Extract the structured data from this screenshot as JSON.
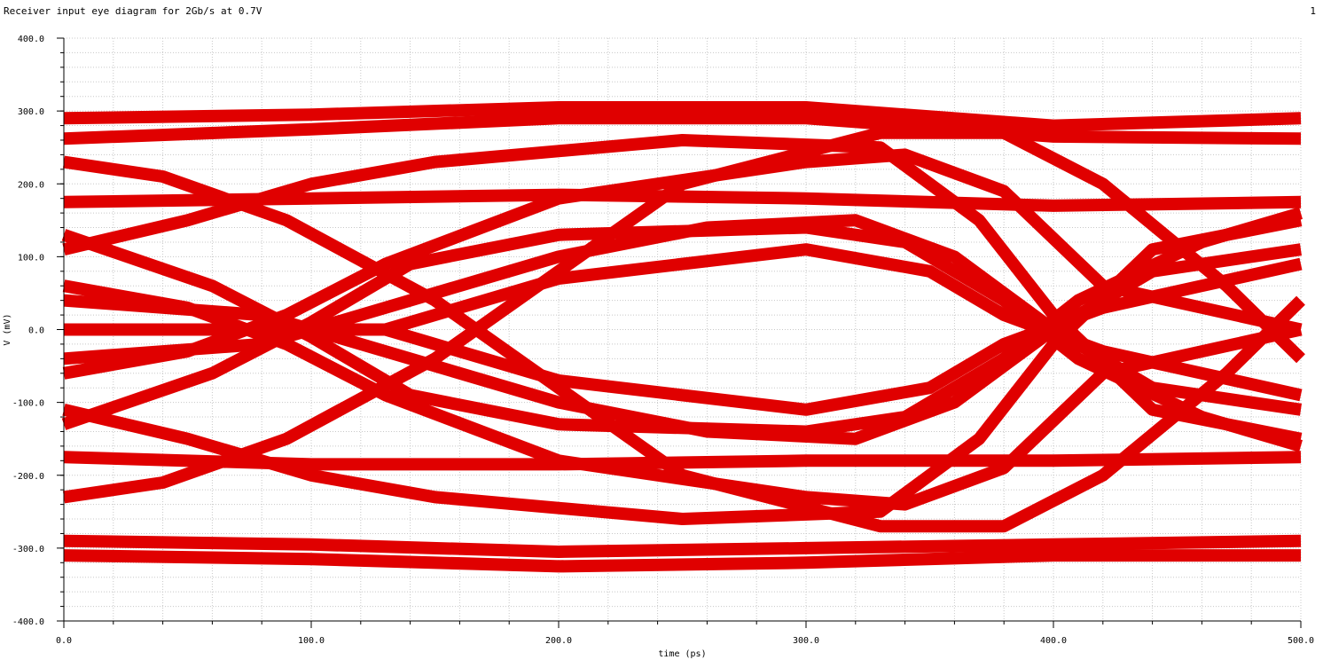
{
  "header": {
    "title": "Receiver input eye diagram for 2Gb/s at 0.7V",
    "page_number": "1"
  },
  "chart_data": {
    "type": "line",
    "title": "Receiver input eye diagram for 2Gb/s at 0.7V",
    "xlabel": "time (ps)",
    "ylabel": "V (mV)",
    "xlim": [
      0,
      500
    ],
    "ylim": [
      -400,
      400
    ],
    "x_ticks": [
      0,
      100,
      200,
      300,
      400,
      500
    ],
    "x_tick_labels": [
      "0.0",
      "100.0",
      "200.0",
      "300.0",
      "400.0",
      "500.0"
    ],
    "y_ticks": [
      400,
      300,
      200,
      100,
      0,
      -100,
      -200,
      -300,
      -400
    ],
    "y_tick_labels": [
      "400.0",
      "300.0",
      "200.0",
      "100.0",
      "0.0",
      "-100.0",
      "-200.0",
      "-300.0",
      "-400.0"
    ],
    "grid": true,
    "legend": false,
    "series_color": "#e00000",
    "series": [
      {
        "x": [
          0,
          100,
          200,
          300,
          400,
          500
        ],
        "values": [
          290,
          295,
          305,
          305,
          280,
          290
        ]
      },
      {
        "x": [
          0,
          100,
          200,
          300,
          400,
          500
        ],
        "values": [
          262,
          275,
          290,
          290,
          265,
          262
        ]
      },
      {
        "x": [
          0,
          100,
          200,
          300,
          400,
          500
        ],
        "values": [
          175,
          180,
          185,
          180,
          170,
          175
        ]
      },
      {
        "x": [
          0,
          100,
          200,
          300,
          400,
          500
        ],
        "values": [
          -175,
          -185,
          -185,
          -180,
          -180,
          -175
        ]
      },
      {
        "x": [
          0,
          100,
          200,
          300,
          400,
          500
        ],
        "values": [
          -290,
          -295,
          -305,
          -300,
          -295,
          -290
        ]
      },
      {
        "x": [
          0,
          100,
          200,
          300,
          400,
          500
        ],
        "values": [
          -310,
          -315,
          -325,
          -320,
          -310,
          -310
        ]
      },
      {
        "x": [
          0,
          50,
          90,
          130,
          200,
          300,
          340,
          380,
          420,
          500
        ],
        "values": [
          -60,
          -30,
          20,
          90,
          180,
          230,
          240,
          190,
          60,
          0
        ]
      },
      {
        "x": [
          0,
          50,
          90,
          130,
          200,
          300,
          340,
          380,
          420,
          500
        ],
        "values": [
          60,
          30,
          -20,
          -90,
          -180,
          -230,
          -240,
          -190,
          -60,
          0
        ]
      },
      {
        "x": [
          0,
          60,
          100,
          140,
          200,
          300,
          340,
          380,
          410,
          460,
          500
        ],
        "values": [
          -130,
          -60,
          10,
          90,
          130,
          140,
          120,
          40,
          -40,
          -120,
          -160
        ]
      },
      {
        "x": [
          0,
          60,
          100,
          140,
          200,
          300,
          340,
          380,
          410,
          460,
          500
        ],
        "values": [
          130,
          60,
          -10,
          -90,
          -130,
          -140,
          -120,
          -40,
          40,
          120,
          160
        ]
      },
      {
        "x": [
          0,
          100,
          130,
          200,
          300,
          350,
          380,
          420,
          460,
          500
        ],
        "values": [
          0,
          0,
          0,
          70,
          110,
          80,
          20,
          -30,
          -60,
          -90
        ]
      },
      {
        "x": [
          0,
          100,
          130,
          200,
          300,
          350,
          380,
          420,
          460,
          500
        ],
        "values": [
          0,
          0,
          0,
          -70,
          -110,
          -80,
          -20,
          30,
          60,
          90
        ]
      },
      {
        "x": [
          0,
          40,
          90,
          150,
          250,
          330,
          380,
          420,
          470,
          500
        ],
        "values": [
          230,
          210,
          150,
          40,
          -200,
          -270,
          -270,
          -200,
          -60,
          40
        ]
      },
      {
        "x": [
          0,
          40,
          90,
          150,
          250,
          330,
          380,
          420,
          470,
          500
        ],
        "values": [
          -230,
          -210,
          -150,
          -40,
          200,
          270,
          270,
          200,
          60,
          -40
        ]
      },
      {
        "x": [
          0,
          50,
          100,
          150,
          250,
          330,
          370,
          400,
          440,
          500
        ],
        "values": [
          110,
          150,
          200,
          230,
          260,
          250,
          150,
          20,
          -110,
          -150
        ]
      },
      {
        "x": [
          0,
          50,
          100,
          150,
          250,
          330,
          370,
          400,
          440,
          500
        ],
        "values": [
          -110,
          -150,
          -200,
          -230,
          -260,
          -250,
          -150,
          -20,
          110,
          150
        ]
      },
      {
        "x": [
          0,
          80,
          140,
          200,
          260,
          320,
          360,
          400,
          440,
          500
        ],
        "values": [
          40,
          20,
          -40,
          -100,
          -140,
          -150,
          -100,
          0,
          80,
          110
        ]
      },
      {
        "x": [
          0,
          80,
          140,
          200,
          260,
          320,
          360,
          400,
          440,
          500
        ],
        "values": [
          -40,
          -20,
          40,
          100,
          140,
          150,
          100,
          0,
          -80,
          -110
        ]
      }
    ]
  }
}
